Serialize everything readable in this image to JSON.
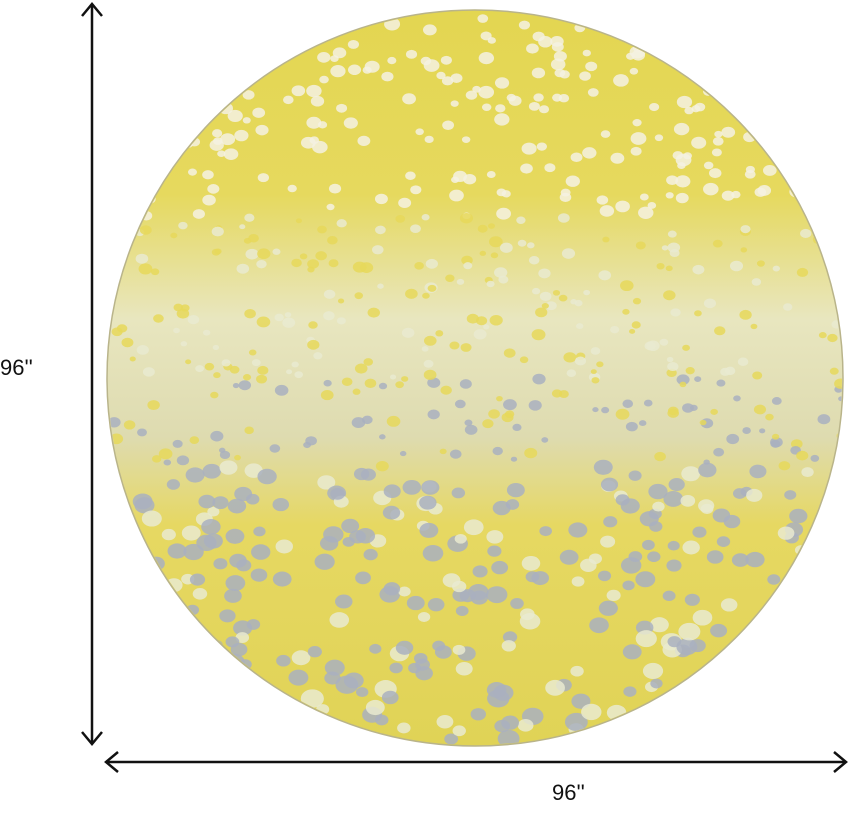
{
  "product": {
    "shape": "round rug",
    "colors": {
      "yellow": "#e6d85a",
      "pale": "#e9ead0",
      "gray_blue": "#a9b0c0",
      "white_dots": "#f4f1e2",
      "arrow": "#111111"
    }
  },
  "dimensions": {
    "height_label": "96''",
    "width_label": "96''"
  }
}
